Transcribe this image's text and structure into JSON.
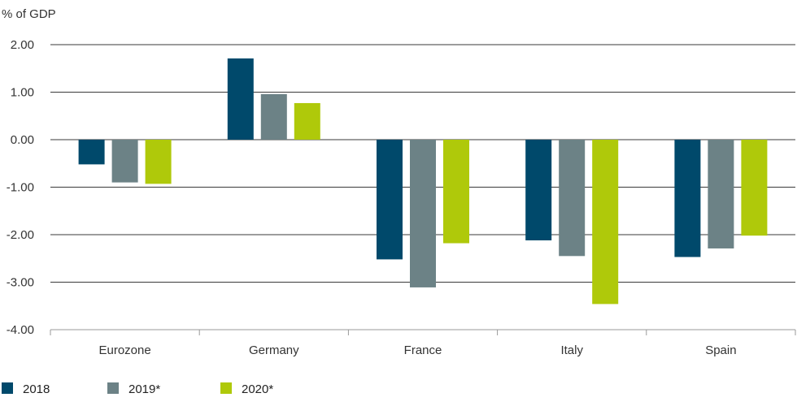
{
  "chart_data": {
    "type": "bar",
    "ylabel": "% of GDP",
    "categories": [
      "Eurozone",
      "Germany",
      "France",
      "Italy",
      "Spain"
    ],
    "series": [
      {
        "name": "2018",
        "color": "#00496b",
        "values": [
          -0.52,
          1.71,
          -2.52,
          -2.12,
          -2.47
        ]
      },
      {
        "name": "2019*",
        "color": "#6c8286",
        "values": [
          -0.9,
          0.96,
          -3.11,
          -2.45,
          -2.29
        ]
      },
      {
        "name": "2020*",
        "color": "#afc90a",
        "values": [
          -0.93,
          0.77,
          -2.18,
          -3.46,
          -2.02
        ]
      }
    ],
    "ylim": [
      -4,
      2
    ],
    "yticks": [
      "2.00",
      "1.00",
      "0.00",
      "-1.00",
      "-2.00",
      "-3.00",
      "-4.00"
    ],
    "grid": true,
    "legend": "bottom-left"
  }
}
